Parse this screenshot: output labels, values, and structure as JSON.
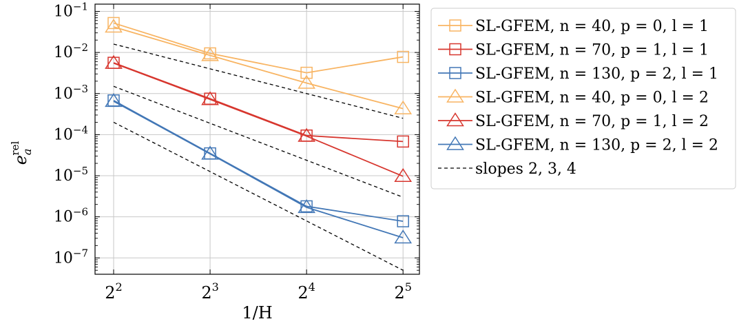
{
  "chart_data": {
    "type": "line",
    "xscale": "log2",
    "yscale": "log10",
    "x": [
      4,
      8,
      16,
      32
    ],
    "x_tick_labels": [
      {
        "base": "2",
        "exp": "2"
      },
      {
        "base": "2",
        "exp": "3"
      },
      {
        "base": "2",
        "exp": "4"
      },
      {
        "base": "2",
        "exp": "5"
      }
    ],
    "y_tick_labels": [
      {
        "base": "10",
        "exp": "−1",
        "value": 0.1
      },
      {
        "base": "10",
        "exp": "−2",
        "value": 0.01
      },
      {
        "base": "10",
        "exp": "−3",
        "value": 0.001
      },
      {
        "base": "10",
        "exp": "−4",
        "value": 0.0001
      },
      {
        "base": "10",
        "exp": "−5",
        "value": 1e-05
      },
      {
        "base": "10",
        "exp": "−6",
        "value": 1e-06
      },
      {
        "base": "10",
        "exp": "−7",
        "value": 1e-07
      }
    ],
    "xlabel": "1/H",
    "ylabel": {
      "base": "e",
      "sub": "a",
      "sup": "rel"
    },
    "xlim": [
      3.5,
      36
    ],
    "ylim": [
      4e-08,
      0.15
    ],
    "grid": true,
    "legend_position": "outside-right",
    "series": [
      {
        "name": "SL-GFEM, n = 40,   p = 0, l = 1",
        "color": "#f8b462",
        "marker": "square",
        "values": [
          0.052,
          0.0095,
          0.0032,
          0.0078
        ]
      },
      {
        "name": "SL-GFEM, n = 70,   p = 1, l = 1",
        "color": "#d7362e",
        "marker": "square",
        "values": [
          0.0056,
          0.00075,
          9.5e-05,
          6.8e-05
        ]
      },
      {
        "name": "SL-GFEM, n = 130, p = 2, l = 1",
        "color": "#4277b6",
        "marker": "square",
        "values": [
          0.00068,
          3.5e-05,
          1.8e-06,
          7.8e-07
        ]
      },
      {
        "name": "SL-GFEM, n = 40,   p = 0, l = 2",
        "color": "#f8b462",
        "marker": "triangle",
        "values": [
          0.042,
          0.0085,
          0.0018,
          0.00043
        ]
      },
      {
        "name": "SL-GFEM, n = 70,   p = 1, l = 2",
        "color": "#d7362e",
        "marker": "triangle",
        "values": [
          0.0055,
          0.00072,
          9.2e-05,
          9.7e-06
        ]
      },
      {
        "name": "SL-GFEM, n = 130, p = 2, l = 2",
        "color": "#4277b6",
        "marker": "triangle",
        "values": [
          0.00065,
          3.4e-05,
          1.7e-06,
          3.1e-07
        ]
      }
    ],
    "reference_lines": {
      "name": "slopes 2, 3, 4",
      "style": "dashed",
      "color": "#000000",
      "lines": [
        {
          "slope": 2,
          "x": [
            4,
            32
          ],
          "y": [
            0.016,
            0.00025
          ]
        },
        {
          "slope": 3,
          "x": [
            4,
            32
          ],
          "y": [
            0.0015,
            3e-06
          ]
        },
        {
          "slope": 4,
          "x": [
            4,
            32
          ],
          "y": [
            0.0002,
            5e-08
          ]
        }
      ]
    }
  }
}
